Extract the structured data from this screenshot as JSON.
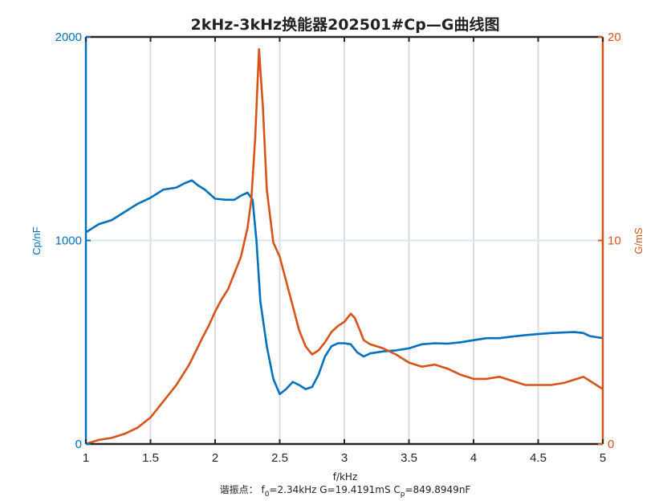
{
  "chart_data": {
    "type": "line",
    "title": "2kHz-3kHz换能器202501#Cp—G曲线图",
    "xlabel": "f/kHz",
    "ylabel_left": "Cp/nF",
    "ylabel_right": "G/mS",
    "xlim": [
      1,
      5
    ],
    "ylim_left": [
      0,
      2000
    ],
    "ylim_right": [
      0,
      20
    ],
    "xticks": [
      "1",
      "1.5",
      "2",
      "2.5",
      "3",
      "3.5",
      "4",
      "4.5",
      "5"
    ],
    "yticks_left": [
      "0",
      "1000",
      "2000"
    ],
    "yticks_right": [
      "0",
      "10",
      "20"
    ],
    "grid": {
      "x": true,
      "y": true
    },
    "annotation": {
      "label": "谐振点：",
      "f0": "f0=2.34kHz",
      "G": "G=19.4191mS",
      "Cp": "Cp=849.8949nF",
      "text": "谐振点：f0=2.34kHz   G=19.4191mS   Cp=849.8949nF"
    },
    "series": [
      {
        "name": "Cp",
        "axis": "left",
        "color": "#0072BD",
        "x": [
          1.0,
          1.1,
          1.2,
          1.3,
          1.4,
          1.5,
          1.6,
          1.7,
          1.76,
          1.82,
          1.87,
          1.92,
          2.0,
          2.08,
          2.15,
          2.2,
          2.25,
          2.29,
          2.32,
          2.35,
          2.4,
          2.45,
          2.5,
          2.55,
          2.6,
          2.65,
          2.7,
          2.75,
          2.8,
          2.85,
          2.9,
          2.95,
          3.0,
          3.05,
          3.1,
          3.15,
          3.2,
          3.3,
          3.4,
          3.5,
          3.6,
          3.7,
          3.8,
          3.9,
          4.0,
          4.1,
          4.2,
          4.3,
          4.4,
          4.5,
          4.6,
          4.7,
          4.78,
          4.85,
          4.9,
          5.0
        ],
        "values": [
          1040,
          1080,
          1100,
          1140,
          1180,
          1210,
          1250,
          1260,
          1280,
          1295,
          1270,
          1250,
          1205,
          1200,
          1200,
          1220,
          1235,
          1200,
          1000,
          700,
          480,
          320,
          245,
          270,
          305,
          290,
          270,
          280,
          340,
          430,
          480,
          495,
          495,
          490,
          450,
          430,
          445,
          455,
          460,
          470,
          490,
          495,
          493,
          500,
          510,
          520,
          520,
          528,
          535,
          540,
          545,
          548,
          550,
          545,
          530,
          520
        ]
      },
      {
        "name": "G",
        "axis": "right",
        "color": "#D95319",
        "x": [
          1.0,
          1.1,
          1.2,
          1.3,
          1.4,
          1.5,
          1.6,
          1.7,
          1.8,
          1.9,
          1.95,
          2.0,
          2.05,
          2.1,
          2.15,
          2.2,
          2.25,
          2.28,
          2.31,
          2.34,
          2.37,
          2.4,
          2.45,
          2.5,
          2.55,
          2.6,
          2.65,
          2.7,
          2.75,
          2.8,
          2.85,
          2.9,
          2.95,
          3.0,
          3.05,
          3.08,
          3.12,
          3.15,
          3.2,
          3.3,
          3.4,
          3.5,
          3.6,
          3.7,
          3.8,
          3.9,
          4.0,
          4.1,
          4.2,
          4.3,
          4.4,
          4.5,
          4.6,
          4.7,
          4.8,
          4.85,
          4.9,
          5.0
        ],
        "values": [
          0.0,
          0.2,
          0.3,
          0.5,
          0.8,
          1.3,
          2.1,
          2.9,
          3.9,
          5.2,
          5.8,
          6.5,
          7.1,
          7.6,
          8.4,
          9.2,
          10.6,
          12.0,
          15.0,
          19.4,
          16.5,
          12.5,
          9.9,
          9.2,
          8.0,
          6.8,
          5.6,
          4.8,
          4.4,
          4.6,
          5.0,
          5.5,
          5.8,
          6.0,
          6.4,
          6.2,
          5.6,
          5.1,
          4.9,
          4.7,
          4.4,
          4.0,
          3.8,
          3.9,
          3.7,
          3.4,
          3.2,
          3.2,
          3.3,
          3.1,
          2.9,
          2.9,
          2.9,
          3.0,
          3.2,
          3.3,
          3.1,
          2.7
        ]
      }
    ]
  }
}
